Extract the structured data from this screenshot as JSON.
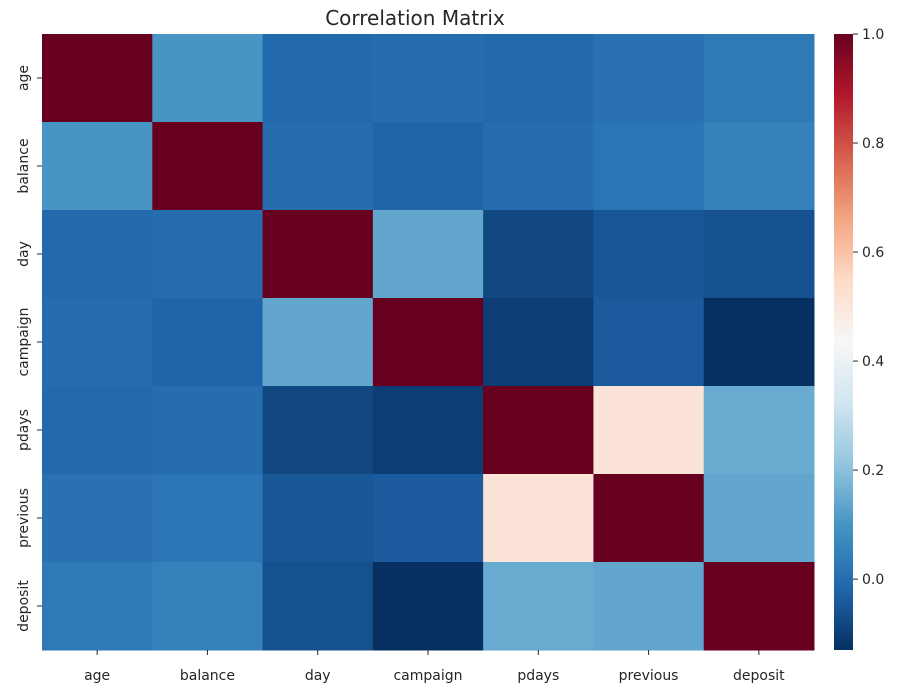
{
  "chart_data": {
    "type": "heatmap",
    "title": "Correlation Matrix",
    "xlabel": "",
    "ylabel": "",
    "x_labels": [
      "age",
      "balance",
      "day",
      "campaign",
      "pdays",
      "previous",
      "deposit"
    ],
    "y_labels": [
      "age",
      "balance",
      "day",
      "campaign",
      "pdays",
      "previous",
      "deposit"
    ],
    "values": [
      [
        1.0,
        0.1,
        -0.01,
        0.0,
        -0.01,
        0.01,
        0.03
      ],
      [
        0.1,
        1.0,
        0.0,
        -0.02,
        0.0,
        0.02,
        0.05
      ],
      [
        -0.01,
        0.0,
        1.0,
        0.14,
        -0.08,
        -0.05,
        -0.06
      ],
      [
        0.0,
        -0.02,
        0.14,
        1.0,
        -0.1,
        -0.04,
        -0.13
      ],
      [
        -0.01,
        0.0,
        -0.08,
        -0.1,
        1.0,
        0.51,
        0.15
      ],
      [
        0.01,
        0.02,
        -0.05,
        -0.04,
        0.51,
        1.0,
        0.14
      ],
      [
        0.03,
        0.05,
        -0.06,
        -0.13,
        0.15,
        0.14,
        1.0
      ]
    ],
    "colormap": "RdBu_r",
    "vmin": -0.13,
    "vmax": 1.0,
    "colorbar_ticks": [
      0.0,
      0.2,
      0.4,
      0.6,
      0.8,
      1.0
    ],
    "colorbar_tick_labels": [
      "0.0",
      "0.2",
      "0.4",
      "0.6",
      "0.8",
      "1.0"
    ],
    "grid": false,
    "legend": "colorbar-right"
  }
}
